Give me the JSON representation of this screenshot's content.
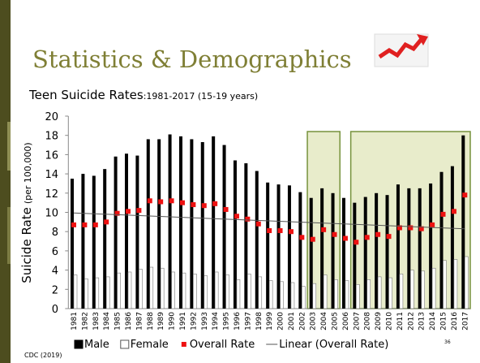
{
  "header": {
    "title": "Statistics & Demographics"
  },
  "chart_data": {
    "type": "bar",
    "title": "Teen Suicide Rates",
    "subtitle": ":1981-2017 (15-19 years)",
    "ylabel": "Suicide Rate",
    "ylabel_unit": "(per 100,000)",
    "categories": [
      "1981",
      "1982",
      "1983",
      "1984",
      "1985",
      "1986",
      "1987",
      "1988",
      "1989",
      "1990",
      "1991",
      "1992",
      "1993",
      "1994",
      "1995",
      "1996",
      "1997",
      "1998",
      "1999",
      "2000",
      "2001",
      "2002",
      "2003",
      "2004",
      "2005",
      "2006",
      "2007",
      "2008",
      "2009",
      "2010",
      "2011",
      "2012",
      "2013",
      "2014",
      "2015",
      "2016",
      "2017"
    ],
    "series": [
      {
        "name": "Male",
        "type": "bar",
        "color": "#000000",
        "values": [
          13.5,
          14.0,
          13.8,
          14.5,
          15.8,
          16.1,
          15.9,
          17.6,
          17.6,
          18.1,
          17.9,
          17.6,
          17.3,
          17.9,
          17.0,
          15.4,
          15.1,
          14.3,
          13.1,
          12.9,
          12.8,
          12.1,
          11.5,
          12.5,
          12.0,
          11.5,
          11.0,
          11.6,
          12.0,
          11.8,
          12.9,
          12.5,
          12.5,
          13.0,
          14.2,
          14.8,
          18.0
        ]
      },
      {
        "name": "Female",
        "type": "bar",
        "color": "#ffffff",
        "values": [
          3.5,
          3.1,
          3.2,
          3.3,
          3.7,
          3.8,
          4.1,
          4.3,
          4.2,
          3.8,
          3.7,
          3.6,
          3.4,
          3.8,
          3.5,
          3.0,
          3.6,
          3.3,
          2.9,
          2.8,
          2.7,
          2.3,
          2.6,
          3.5,
          3.0,
          2.9,
          2.5,
          3.0,
          3.3,
          3.2,
          3.6,
          4.0,
          3.9,
          4.2,
          5.0,
          5.1,
          5.4
        ]
      },
      {
        "name": "Overall Rate",
        "type": "scatter",
        "color": "#ee1111",
        "values": [
          8.7,
          8.7,
          8.7,
          9.0,
          9.9,
          10.1,
          10.2,
          11.2,
          11.1,
          11.2,
          11.0,
          10.8,
          10.7,
          10.9,
          10.3,
          9.6,
          9.3,
          8.8,
          8.1,
          8.1,
          8.0,
          7.4,
          7.2,
          8.2,
          7.7,
          7.3,
          6.9,
          7.4,
          7.7,
          7.5,
          8.4,
          8.4,
          8.3,
          8.7,
          9.8,
          10.1,
          11.8
        ]
      }
    ],
    "trendline": {
      "name": "Linear (Overall Rate)",
      "color": "#555555"
    },
    "ylim": [
      0,
      20
    ],
    "yticks": [
      0,
      2,
      4,
      6,
      8,
      10,
      12,
      14,
      16,
      18,
      20
    ],
    "source": "CDC (2019)"
  },
  "slide_number": "36"
}
